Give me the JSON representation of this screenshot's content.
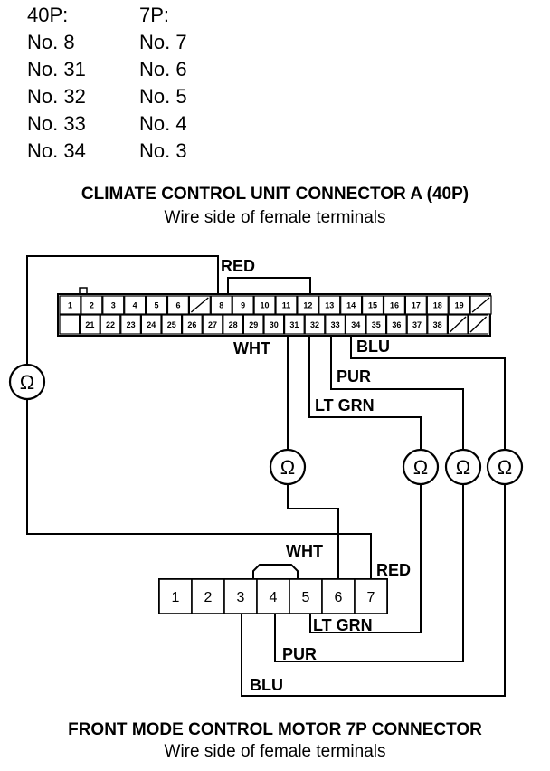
{
  "pin_table": {
    "header": [
      "40P:",
      "7P:"
    ],
    "rows": [
      [
        "No. 8",
        "No. 7"
      ],
      [
        "No. 31",
        "No. 6"
      ],
      [
        "No. 32",
        "No. 5"
      ],
      [
        "No. 33",
        "No. 4"
      ],
      [
        "No. 34",
        "No. 3"
      ]
    ]
  },
  "connector_a": {
    "title": "CLIMATE CONTROL UNIT CONNECTOR A (40P)",
    "subtitle": "Wire side of female terminals",
    "top_row": [
      "1",
      "2",
      "3",
      "4",
      "5",
      "6",
      "",
      "8",
      "9",
      "10",
      "11",
      "12",
      "13",
      "14",
      "15",
      "16",
      "17",
      "18",
      "19",
      ""
    ],
    "bottom_row": [
      "",
      "21",
      "22",
      "23",
      "24",
      "25",
      "26",
      "27",
      "28",
      "29",
      "30",
      "31",
      "32",
      "33",
      "34",
      "35",
      "36",
      "37",
      "38",
      "",
      ""
    ]
  },
  "connector_b": {
    "title": "FRONT MODE CONTROL MOTOR 7P CONNECTOR",
    "subtitle": "Wire side of female terminals",
    "pins": [
      "1",
      "2",
      "3",
      "4",
      "5",
      "6",
      "7"
    ]
  },
  "wires": {
    "red_top": "RED",
    "wht_top": "WHT",
    "blu_top": "BLU",
    "pur_top": "PUR",
    "ltgrn_top": "LT GRN",
    "wht_bottom": "WHT",
    "red_bottom": "RED",
    "ltgrn_bottom": "LT GRN",
    "pur_bottom": "PUR",
    "blu_bottom": "BLU"
  },
  "ohmmeter_symbol": "Ω",
  "colors": {
    "ink": "#000000",
    "paper": "#ffffff"
  }
}
